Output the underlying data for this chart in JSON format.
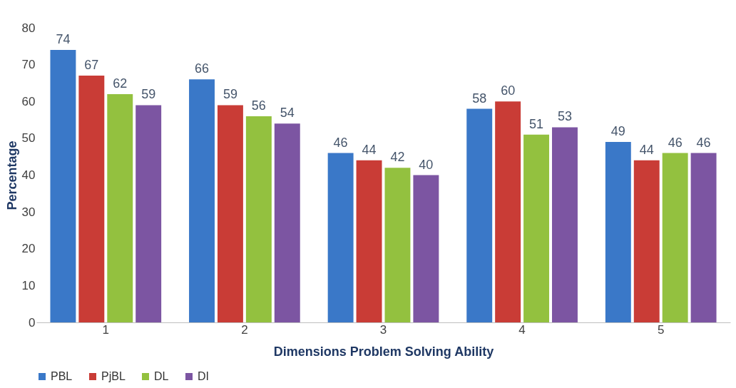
{
  "chart_data": {
    "type": "bar",
    "xlabel": "Dimensions Problem Solving Ability",
    "ylabel": "Percentage",
    "categories": [
      "1",
      "2",
      "3",
      "4",
      "5"
    ],
    "series": [
      {
        "name": "PBL",
        "color": "#3a78c8",
        "values": [
          74,
          66,
          46,
          58,
          49
        ]
      },
      {
        "name": "PjBL",
        "color": "#c93c36",
        "values": [
          67,
          59,
          44,
          60,
          44
        ]
      },
      {
        "name": "DL",
        "color": "#93c13f",
        "values": [
          62,
          56,
          42,
          51,
          46
        ]
      },
      {
        "name": "DI",
        "color": "#7c55a2",
        "values": [
          59,
          54,
          40,
          53,
          46
        ]
      }
    ],
    "ylim": [
      0,
      80
    ],
    "yticks": [
      0,
      10,
      20,
      30,
      40,
      50,
      60,
      70,
      80
    ],
    "grid": false,
    "legend": "bottom",
    "data_labels": true
  }
}
